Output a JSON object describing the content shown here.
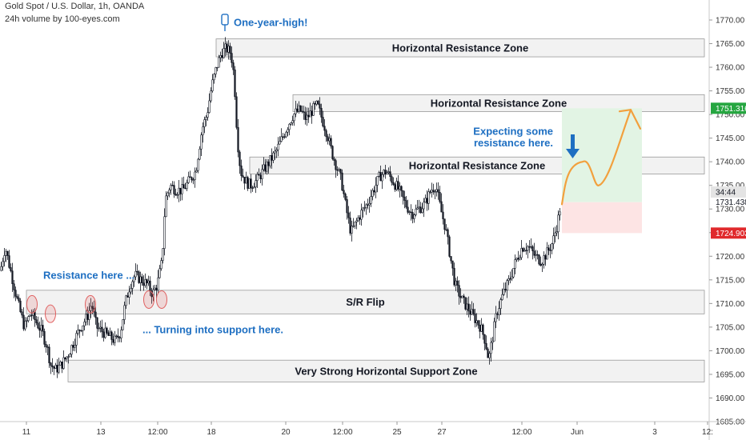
{
  "header": {
    "symbol_line": "Gold Spot / U.S. Dollar, 1h, OANDA",
    "volume_line": "24h volume by 100-eyes.com"
  },
  "colors": {
    "candle": "#131722",
    "zone_fill": "#f0f0f0",
    "zone_border": "#9a9a9a",
    "annotation": "#1e6fc2",
    "arrow": "#f2a03d",
    "target_fill": "#e2f4e4",
    "stop_fill": "#fde4e4",
    "price_tag_green": "#26a641",
    "price_tag_red": "#e0292c",
    "circle": "#e06060"
  },
  "chart_data": {
    "type": "candlestick",
    "ylim": [
      1685,
      1772
    ],
    "y_ticks": [
      1685,
      1690,
      1695,
      1700,
      1705,
      1710,
      1715,
      1720,
      1725,
      1730,
      1735,
      1740,
      1745,
      1750,
      1755,
      1760,
      1765,
      1770
    ],
    "x_ticks": [
      "11",
      "13",
      "12:00",
      "18",
      "20",
      "12:00",
      "25",
      "27",
      "12:00",
      "Jun",
      "3",
      "12:"
    ],
    "price_path": [
      [
        0,
        1717
      ],
      [
        6,
        1722
      ],
      [
        14,
        1716
      ],
      [
        22,
        1710
      ],
      [
        30,
        1705
      ],
      [
        38,
        1708
      ],
      [
        45,
        1706
      ],
      [
        52,
        1704
      ],
      [
        58,
        1701
      ],
      [
        63,
        1697
      ],
      [
        69,
        1696
      ],
      [
        76,
        1697
      ],
      [
        84,
        1699
      ],
      [
        92,
        1702
      ],
      [
        100,
        1705
      ],
      [
        108,
        1707
      ],
      [
        114,
        1710
      ],
      [
        120,
        1705
      ],
      [
        128,
        1704
      ],
      [
        136,
        1703
      ],
      [
        144,
        1702
      ],
      [
        150,
        1704
      ],
      [
        156,
        1710
      ],
      [
        162,
        1714
      ],
      [
        168,
        1716
      ],
      [
        176,
        1715
      ],
      [
        184,
        1714
      ],
      [
        190,
        1712
      ],
      [
        196,
        1714
      ],
      [
        202,
        1719
      ],
      [
        206,
        1732
      ],
      [
        212,
        1735
      ],
      [
        220,
        1734
      ],
      [
        228,
        1734
      ],
      [
        236,
        1736
      ],
      [
        244,
        1738
      ],
      [
        252,
        1747
      ],
      [
        258,
        1750
      ],
      [
        264,
        1756
      ],
      [
        270,
        1760
      ],
      [
        276,
        1763
      ],
      [
        282,
        1764
      ],
      [
        288,
        1763
      ],
      [
        292,
        1758
      ],
      [
        296,
        1745
      ],
      [
        300,
        1738
      ],
      [
        306,
        1736
      ],
      [
        312,
        1735
      ],
      [
        320,
        1736
      ],
      [
        328,
        1738
      ],
      [
        336,
        1740
      ],
      [
        344,
        1742
      ],
      [
        352,
        1745
      ],
      [
        360,
        1748
      ],
      [
        366,
        1750
      ],
      [
        374,
        1751
      ],
      [
        382,
        1749
      ],
      [
        390,
        1751
      ],
      [
        396,
        1752
      ],
      [
        402,
        1749
      ],
      [
        408,
        1746
      ],
      [
        414,
        1742
      ],
      [
        420,
        1739
      ],
      [
        426,
        1736
      ],
      [
        432,
        1730
      ],
      [
        438,
        1725
      ],
      [
        444,
        1727
      ],
      [
        450,
        1729
      ],
      [
        458,
        1731
      ],
      [
        466,
        1734
      ],
      [
        474,
        1737
      ],
      [
        482,
        1738
      ],
      [
        490,
        1736
      ],
      [
        498,
        1734
      ],
      [
        506,
        1731
      ],
      [
        514,
        1729
      ],
      [
        522,
        1730
      ],
      [
        530,
        1731
      ],
      [
        538,
        1734
      ],
      [
        544,
        1735
      ],
      [
        550,
        1730
      ],
      [
        556,
        1726
      ],
      [
        562,
        1720
      ],
      [
        568,
        1714
      ],
      [
        576,
        1711
      ],
      [
        584,
        1709
      ],
      [
        592,
        1707
      ],
      [
        600,
        1705
      ],
      [
        606,
        1702
      ],
      [
        610,
        1698
      ],
      [
        614,
        1702
      ],
      [
        620,
        1708
      ],
      [
        628,
        1712
      ],
      [
        636,
        1715
      ],
      [
        644,
        1719
      ],
      [
        652,
        1722
      ],
      [
        660,
        1722
      ],
      [
        668,
        1720
      ],
      [
        676,
        1719
      ],
      [
        684,
        1721
      ],
      [
        690,
        1723
      ],
      [
        696,
        1727
      ],
      [
        700,
        1731
      ]
    ],
    "zones": [
      {
        "label": "Horizontal Resistance Zone",
        "x1": 270,
        "x2": 880,
        "top": 1766,
        "bottom": 1762.2
      },
      {
        "label": "Horizontal Resistance Zone",
        "x1": 366,
        "x2": 880,
        "top": 1754.2,
        "bottom": 1750.6
      },
      {
        "label": "Horizontal Resistance Zone",
        "x1": 312,
        "x2": 880,
        "top": 1741,
        "bottom": 1737.4
      },
      {
        "label": "S/R Flip",
        "x1": 33,
        "x2": 880,
        "top": 1712.8,
        "bottom": 1707.8
      },
      {
        "label": "Very Strong Horizontal Support Zone",
        "x1": 85,
        "x2": 880,
        "top": 1698,
        "bottom": 1693.4
      }
    ],
    "annotations": [
      {
        "text": "One-year-high!",
        "price": 1769.5
      },
      {
        "text": "Resistance here ...",
        "price": 1716
      },
      {
        "text": "... Turning into support here.",
        "price": 1704.5
      },
      {
        "text": "Expecting some",
        "price": 1746.5
      },
      {
        "text": "resistance here.",
        "price": 1744
      }
    ],
    "resistance_touches": [
      {
        "x": 40,
        "price": 1710
      },
      {
        "x": 63,
        "price": 1708
      },
      {
        "x": 113,
        "price": 1710
      },
      {
        "x": 186,
        "price": 1711
      },
      {
        "x": 202,
        "price": 1711
      }
    ],
    "position": {
      "x1": 702,
      "x2": 802,
      "target": 1751.316,
      "entry": 1731.438,
      "stop": 1724.903
    },
    "price_tags": [
      {
        "text": "1751.316",
        "price": 1751.316,
        "style": "green"
      },
      {
        "text": "34:44",
        "price": 1733.6,
        "style": "gray"
      },
      {
        "text": "1731.438",
        "price": 1731.438,
        "style": "plain"
      },
      {
        "text": "1724.903",
        "price": 1724.903,
        "style": "red"
      }
    ],
    "projection_path": [
      [
        702,
        1731
      ],
      [
        712,
        1738
      ],
      [
        728,
        1740
      ],
      [
        748,
        1735
      ],
      [
        770,
        1742
      ],
      [
        788,
        1751
      ],
      [
        800,
        1747
      ]
    ]
  }
}
